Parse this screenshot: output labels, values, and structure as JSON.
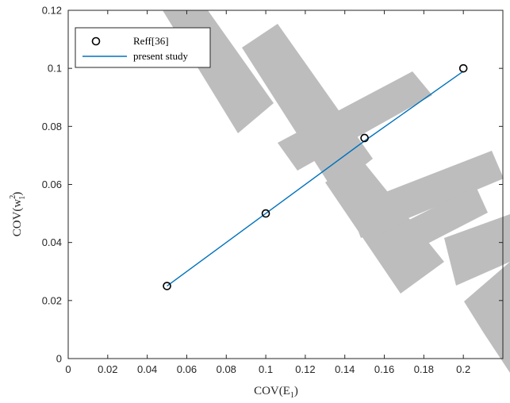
{
  "chart_data": {
    "type": "scatter",
    "xlabel": "COV(E1)",
    "ylabel": "COV(w1²)",
    "xlim": [
      0,
      0.22
    ],
    "ylim": [
      0,
      0.12
    ],
    "x_ticks": [
      "0",
      "0.02",
      "0.04",
      "0.06",
      "0.08",
      "0.1",
      "0.12",
      "0.14",
      "0.16",
      "0.18",
      "0.2"
    ],
    "y_ticks": [
      "0",
      "0.02",
      "0.04",
      "0.06",
      "0.08",
      "0.1",
      "0.12"
    ],
    "grid": false,
    "legend_position": "top-left",
    "series": [
      {
        "name": "Reff[36]",
        "style": "markers",
        "color": "#000000",
        "x": [
          0.05,
          0.1,
          0.15,
          0.2
        ],
        "y": [
          0.025,
          0.05,
          0.076,
          0.1
        ]
      },
      {
        "name": "present study",
        "style": "line",
        "color": "#0072BD",
        "x": [
          0.05,
          0.1,
          0.15,
          0.2
        ],
        "y": [
          0.025,
          0.05,
          0.075,
          0.099
        ]
      }
    ]
  },
  "watermark": {
    "color": "#bdbdbd"
  }
}
